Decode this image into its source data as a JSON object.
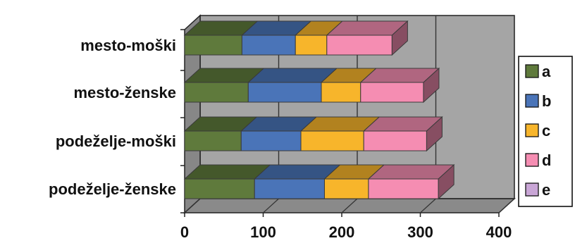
{
  "chart_data": {
    "type": "bar",
    "orientation": "horizontal",
    "stacked": true,
    "three_d": true,
    "categories": [
      "mesto-moški",
      "mesto-ženske",
      "podeželje-moški",
      "podeželje-ženske"
    ],
    "series": [
      {
        "name": "a",
        "values": [
          73,
          81,
          72,
          89
        ],
        "color": "#5f7a3c"
      },
      {
        "name": "b",
        "values": [
          68,
          93,
          76,
          89
        ],
        "color": "#4a74b8"
      },
      {
        "name": "c",
        "values": [
          40,
          50,
          80,
          56
        ],
        "color": "#f7b52b"
      },
      {
        "name": "d",
        "values": [
          83,
          80,
          80,
          89
        ],
        "color": "#f58db2"
      },
      {
        "name": "e",
        "values": [
          0,
          0,
          0,
          0
        ],
        "color": "#c9a6d6"
      }
    ],
    "x_ticks": [
      "0",
      "100",
      "200",
      "300",
      "400"
    ],
    "xlim": [
      0,
      400
    ],
    "grid": true,
    "legend_position": "right",
    "wall_color": "#a5a5a5",
    "floor_color": "#8a8a8a",
    "bar_outline_color": "#3a3a3a"
  }
}
